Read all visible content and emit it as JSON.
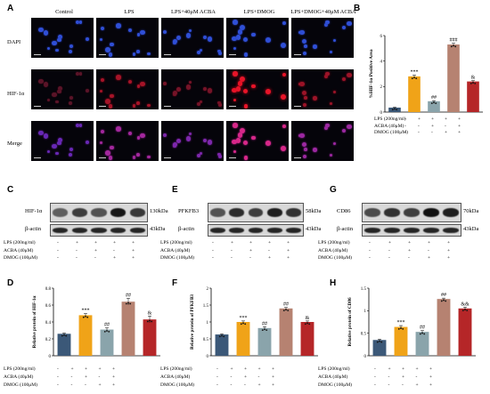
{
  "panels": {
    "A": "A",
    "B": "B",
    "C": "C",
    "D": "D",
    "E": "E",
    "F": "F",
    "G": "G",
    "H": "H"
  },
  "microscopy": {
    "columns": [
      "Control",
      "LPS",
      "LPS+40μM ACBA",
      "LPS+DMOG",
      "LPS+DMOG+40μM ACBA"
    ],
    "rows": [
      "DAPI",
      "HIF-1α",
      "Merge"
    ]
  },
  "treatments": {
    "labels": [
      "LPS (200ng/ml)",
      "ACBA (40μM)",
      "DMOG (100μM)"
    ],
    "rows": [
      [
        "-",
        "+",
        "+",
        "+",
        "+"
      ],
      [
        "-",
        "-",
        "+",
        "-",
        "+"
      ],
      [
        "-",
        "-",
        "-",
        "+",
        "+"
      ]
    ]
  },
  "blots": {
    "C": {
      "top": "HIF-1α",
      "top_kda": "130kDa",
      "bottom": "β-actin",
      "bottom_kda": "43kDa"
    },
    "E": {
      "top": "PFKFB3",
      "top_kda": "58kDa",
      "bottom": "β-actin",
      "bottom_kda": "43kDa"
    },
    "G": {
      "top": "CD86",
      "top_kda": "70kDa",
      "bottom": "β-actin",
      "bottom_kda": "43kDa"
    }
  },
  "colors": [
    "#3b5878",
    "#f0a318",
    "#8aa4ab",
    "#b68271",
    "#b52628"
  ],
  "chart_data": [
    {
      "id": "B",
      "type": "bar",
      "ylabel": "%HIF-1α Positive Area",
      "ylim": [
        0,
        6
      ],
      "yticks": [
        0,
        2,
        4,
        6
      ],
      "values": [
        0.35,
        2.8,
        0.85,
        5.3,
        2.4
      ],
      "errors": [
        0.04,
        0.1,
        0.05,
        0.1,
        0.07
      ],
      "sig": [
        "",
        "***",
        "##",
        "###",
        "&"
      ]
    },
    {
      "id": "D",
      "type": "bar",
      "ylabel": "Relative protein of HIF-1α",
      "ylim": [
        0,
        0.8
      ],
      "yticks": [
        0,
        0.2,
        0.4,
        0.6,
        0.8
      ],
      "values": [
        0.26,
        0.48,
        0.31,
        0.64,
        0.43
      ],
      "errors": [
        0.01,
        0.02,
        0.02,
        0.04,
        0.04
      ],
      "sig": [
        "",
        "***",
        "##",
        "##",
        "&"
      ]
    },
    {
      "id": "F",
      "type": "bar",
      "ylabel": "Relative protein of PFKFB3",
      "ylim": [
        0,
        2.0
      ],
      "yticks": [
        0,
        0.5,
        1.0,
        1.5,
        2.0
      ],
      "values": [
        0.63,
        1.0,
        0.82,
        1.4,
        1.0
      ],
      "errors": [
        0.02,
        0.03,
        0.04,
        0.03,
        0.03
      ],
      "sig": [
        "",
        "***",
        "##",
        "##",
        "&"
      ]
    },
    {
      "id": "H",
      "type": "bar",
      "ylabel": "Relative protein of CD86",
      "ylim": [
        0,
        1.5
      ],
      "yticks": [
        0,
        0.5,
        1.0,
        1.5
      ],
      "values": [
        0.35,
        0.64,
        0.53,
        1.26,
        1.05
      ],
      "errors": [
        0.02,
        0.03,
        0.03,
        0.02,
        0.03
      ],
      "sig": [
        "",
        "***",
        "##",
        "##",
        "&&"
      ]
    }
  ]
}
